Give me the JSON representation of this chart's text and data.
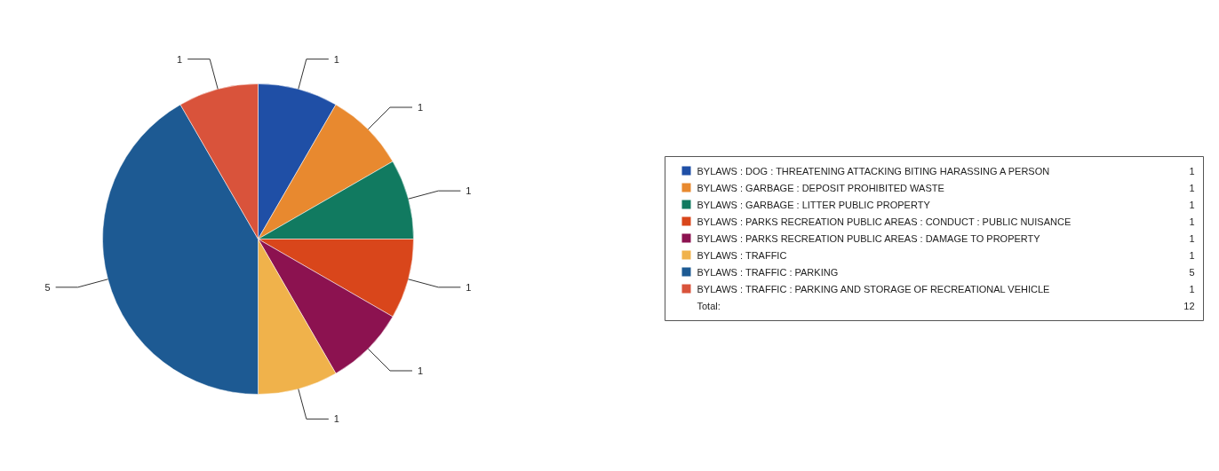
{
  "chart_data": {
    "type": "pie",
    "categories": [
      "BYLAWS : DOG : THREATENING ATTACKING BITING HARASSING A PERSON",
      "BYLAWS : GARBAGE : DEPOSIT PROHIBITED WASTE",
      "BYLAWS : GARBAGE : LITTER PUBLIC PROPERTY",
      "BYLAWS : PARKS RECREATION PUBLIC AREAS : CONDUCT : PUBLIC NUISANCE",
      "BYLAWS : PARKS RECREATION PUBLIC AREAS : DAMAGE TO PROPERTY",
      "BYLAWS : TRAFFIC",
      "BYLAWS : TRAFFIC : PARKING",
      "BYLAWS : TRAFFIC : PARKING AND STORAGE OF RECREATIONAL VEHICLE"
    ],
    "values": [
      1,
      1,
      1,
      1,
      1,
      1,
      5,
      1
    ],
    "colors": [
      "#1f4fa6",
      "#e8892f",
      "#117a60",
      "#d9461b",
      "#8c1250",
      "#f0b24b",
      "#1d5a93",
      "#d9533b"
    ],
    "data_labels": true,
    "legend": "right",
    "annotations": [
      "1",
      "1",
      "1",
      "1",
      "1",
      "1",
      "5",
      "1",
      "Total:",
      "12"
    ]
  }
}
